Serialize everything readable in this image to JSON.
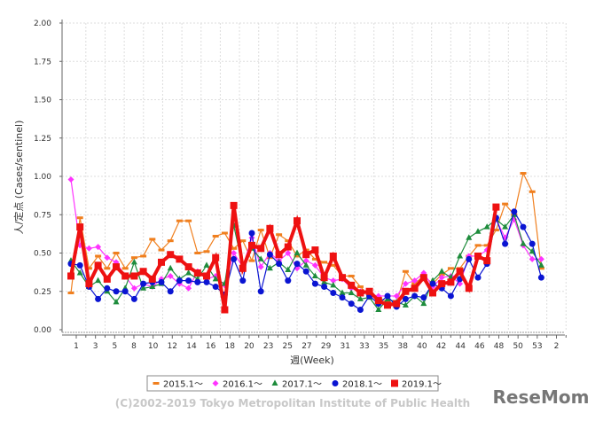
{
  "chart_data": {
    "type": "line",
    "ylabel": "人/定点 (Cases/sentinel)",
    "xlabel": "週(Week)",
    "ylim": [
      0,
      2.0
    ],
    "yticks": [
      "0.00",
      "0.25",
      "0.50",
      "0.75",
      "1.00",
      "1.25",
      "1.50",
      "1.75",
      "2.00"
    ],
    "xtick_labels": [
      "1",
      "3",
      "5",
      "8",
      "10",
      "12",
      "14",
      "16",
      "18",
      "20",
      "23",
      "25",
      "27",
      "29",
      "31",
      "33",
      "35",
      "38",
      "40",
      "42",
      "44",
      "46",
      "48",
      "50",
      "53",
      "2"
    ],
    "grid": true,
    "legend_position": "bottom",
    "series": [
      {
        "name": "2015.1～",
        "color": "#f07f1e",
        "marker": "dash",
        "values": [
          0.24,
          0.73,
          0.4,
          0.48,
          0.4,
          0.5,
          0.4,
          0.47,
          0.48,
          0.59,
          0.52,
          0.58,
          0.71,
          0.71,
          0.5,
          0.51,
          0.61,
          0.63,
          0.53,
          0.58,
          0.45,
          0.65,
          0.47,
          0.62,
          0.58,
          0.48,
          0.52,
          0.46,
          0.44,
          0.42,
          0.35,
          0.35,
          0.28,
          0.22,
          0.21,
          0.18,
          0.17,
          0.38,
          0.3,
          0.35,
          0.3,
          0.36,
          0.4,
          0.4,
          0.48,
          0.55,
          0.55,
          0.65,
          0.82,
          0.75,
          1.02,
          0.9,
          0.4
        ]
      },
      {
        "name": "2016.1～",
        "color": "#ff33ff",
        "marker": "diamond",
        "values": [
          0.98,
          0.55,
          0.53,
          0.54,
          0.47,
          0.44,
          0.35,
          0.27,
          0.3,
          0.28,
          0.33,
          0.35,
          0.3,
          0.27,
          0.38,
          0.33,
          0.35,
          0.29,
          0.5,
          0.41,
          0.6,
          0.41,
          0.5,
          0.45,
          0.5,
          0.4,
          0.45,
          0.42,
          0.34,
          0.32,
          0.33,
          0.27,
          0.25,
          0.23,
          0.22,
          0.22,
          0.22,
          0.3,
          0.32,
          0.37,
          0.28,
          0.34,
          0.35,
          0.3,
          0.48,
          0.48,
          0.52,
          0.72,
          0.6,
          0.72,
          0.55,
          0.46,
          0.46
        ]
      },
      {
        "name": "2017.1～",
        "color": "#1e8c3c",
        "marker": "triangle",
        "values": [
          0.45,
          0.37,
          0.28,
          0.32,
          0.25,
          0.18,
          0.27,
          0.44,
          0.27,
          0.28,
          0.3,
          0.4,
          0.33,
          0.37,
          0.33,
          0.42,
          0.33,
          0.3,
          0.68,
          0.41,
          0.53,
          0.46,
          0.4,
          0.44,
          0.39,
          0.5,
          0.42,
          0.35,
          0.31,
          0.29,
          0.24,
          0.24,
          0.2,
          0.21,
          0.13,
          0.2,
          0.18,
          0.16,
          0.22,
          0.17,
          0.32,
          0.38,
          0.34,
          0.48,
          0.6,
          0.64,
          0.67,
          0.72,
          0.67,
          0.75,
          0.56,
          0.51,
          0.42
        ]
      },
      {
        "name": "2018.1～",
        "color": "#0a14d2",
        "marker": "circle",
        "values": [
          0.43,
          0.42,
          0.28,
          0.2,
          0.27,
          0.25,
          0.25,
          0.2,
          0.3,
          0.31,
          0.31,
          0.25,
          0.32,
          0.32,
          0.31,
          0.31,
          0.28,
          0.23,
          0.46,
          0.32,
          0.63,
          0.25,
          0.49,
          0.43,
          0.32,
          0.43,
          0.38,
          0.3,
          0.28,
          0.24,
          0.21,
          0.17,
          0.13,
          0.22,
          0.17,
          0.22,
          0.15,
          0.2,
          0.22,
          0.21,
          0.3,
          0.27,
          0.22,
          0.33,
          0.46,
          0.34,
          0.43,
          0.73,
          0.56,
          0.77,
          0.67,
          0.56,
          0.34
        ]
      },
      {
        "name": "2019.1～",
        "color": "#ee1111",
        "marker": "square",
        "values": [
          0.35,
          0.67,
          0.3,
          0.42,
          0.33,
          0.41,
          0.35,
          0.35,
          0.38,
          0.33,
          0.44,
          0.49,
          0.46,
          0.41,
          0.37,
          0.35,
          0.47,
          0.13,
          0.81,
          0.4,
          0.55,
          0.53,
          0.66,
          0.49,
          0.54,
          0.71,
          0.49,
          0.52,
          0.34,
          0.48,
          0.34,
          0.29,
          0.24,
          0.25,
          0.19,
          0.16,
          0.17,
          0.25,
          0.27,
          0.34,
          0.24,
          0.3,
          0.31,
          0.38,
          0.27,
          0.48,
          0.45,
          0.8
        ]
      }
    ]
  },
  "footer": {
    "copyright": "(C)2002-2019 Tokyo Metropolitan Institute of Public Health",
    "logo": "ReseMom"
  }
}
